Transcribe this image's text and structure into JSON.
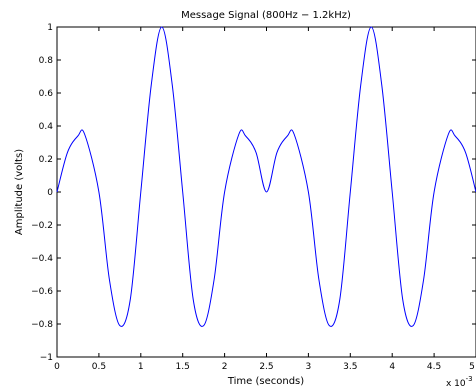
{
  "chart_data": {
    "type": "line",
    "title": "Message Signal (800Hz − 1.2kHz)",
    "xlabel": "Time (seconds)",
    "ylabel": "Amplitude (volts)",
    "x_multiplier_label": "x 10",
    "x_multiplier_exponent": "-3",
    "xlim": [
      0,
      5
    ],
    "ylim": [
      -1,
      1
    ],
    "x_ticks": [
      0,
      0.5,
      1,
      1.5,
      2,
      2.5,
      3,
      3.5,
      4,
      4.5,
      5
    ],
    "x_tick_labels": [
      "0",
      "0.5",
      "1",
      "1.5",
      "2",
      "2.5",
      "3",
      "3.5",
      "4",
      "4.5",
      "5"
    ],
    "y_ticks": [
      -1,
      -0.8,
      -0.6,
      -0.4,
      -0.2,
      0,
      0.2,
      0.4,
      0.6,
      0.8,
      1
    ],
    "y_tick_labels": [
      "−1",
      "−0.8",
      "−0.6",
      "−0.4",
      "−0.2",
      "0",
      "0.2",
      "0.4",
      "0.6",
      "0.8",
      "1"
    ],
    "grid": false,
    "line_color": "#0000ff",
    "series": [
      {
        "description": "0.5*sin(2*pi*800*t) + 0.5*sin(2*pi*1200*t), t in x 10^-3 s",
        "x": [
          0,
          0.125,
          0.25,
          0.33,
          0.5,
          0.625,
          0.75,
          0.875,
          1.0,
          1.125,
          1.25,
          1.375,
          1.5,
          1.625,
          1.75,
          1.875,
          2.0,
          2.17,
          2.25,
          2.375,
          2.5,
          2.625,
          2.75,
          2.83,
          3.0,
          3.125,
          3.25,
          3.375,
          3.5,
          3.625,
          3.75,
          3.875,
          4.0,
          4.125,
          4.25,
          4.375,
          4.5,
          4.67,
          4.75,
          4.875,
          5.0
        ],
        "values": [
          0,
          0.24,
          0.34,
          0.35,
          0,
          -0.53,
          -0.81,
          -0.65,
          0,
          0.65,
          1.0,
          0.65,
          0,
          -0.65,
          -0.81,
          -0.53,
          0,
          0.35,
          0.34,
          0.24,
          0,
          0.24,
          0.34,
          0.35,
          0,
          -0.53,
          -0.81,
          -0.65,
          0,
          0.65,
          1.0,
          0.65,
          0,
          -0.65,
          -0.81,
          -0.53,
          0,
          0.35,
          0.34,
          0.24,
          0
        ]
      }
    ]
  }
}
